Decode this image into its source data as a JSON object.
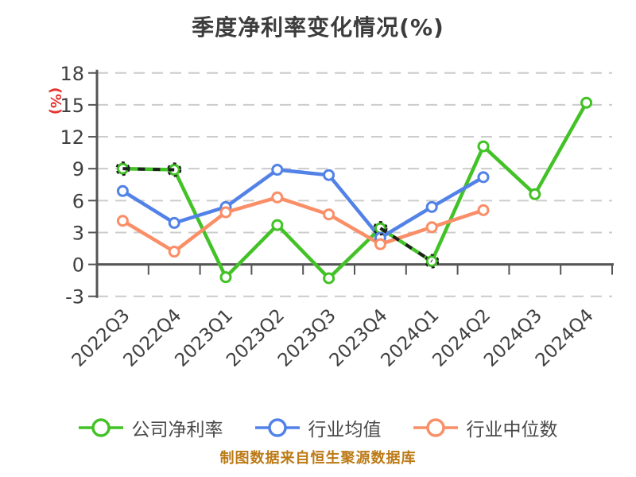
{
  "title": "季度净利率变化情况(%)",
  "footer": "制图数据来自恒生聚源数据库",
  "y_axis": {
    "label": "(%)",
    "label_color": "#e8312f",
    "ticks": [
      18,
      15,
      12,
      9,
      6,
      3,
      0,
      -3
    ],
    "min": -3,
    "max": 18
  },
  "colors": {
    "title_text": "#3c3c3c",
    "axis_line": "#555555",
    "grid_line": "#cccccc",
    "tick_label": "#404040",
    "legend_text": "#4a4a4a",
    "footer_text": "#bc7a16",
    "overlay_dash": "#1f1f1f",
    "marker_fill": "#ffffff"
  },
  "chart_data": {
    "type": "line",
    "title": "季度净利率变化情况(%)",
    "ylabel": "(%)",
    "ylim": [
      -3,
      18
    ],
    "grid": "horizontal dashed",
    "legend_position": "bottom",
    "categories": [
      "2022Q3",
      "2022Q4",
      "2023Q1",
      "2023Q2",
      "2023Q3",
      "2023Q4",
      "2024Q1",
      "2024Q2",
      "2024Q3",
      "2024Q4"
    ],
    "series": [
      {
        "name": "公司净利率",
        "color": "#42c226",
        "values": [
          9.0,
          8.9,
          -1.2,
          3.7,
          -1.3,
          3.4,
          0.3,
          11.1,
          6.6,
          15.2
        ],
        "black_dashed_overlay_segments": [
          [
            0,
            1
          ],
          [
            5,
            6
          ]
        ]
      },
      {
        "name": "行业均值",
        "color": "#5282e8",
        "values": [
          6.9,
          3.9,
          5.4,
          8.9,
          8.4,
          2.5,
          5.4,
          8.2,
          null,
          null
        ],
        "black_dashed_overlay_segments": []
      },
      {
        "name": "行业中位数",
        "color": "#fa8e67",
        "values": [
          4.1,
          1.2,
          4.9,
          6.3,
          4.7,
          1.9,
          3.5,
          5.1,
          null,
          null
        ],
        "black_dashed_overlay_segments": []
      }
    ]
  }
}
